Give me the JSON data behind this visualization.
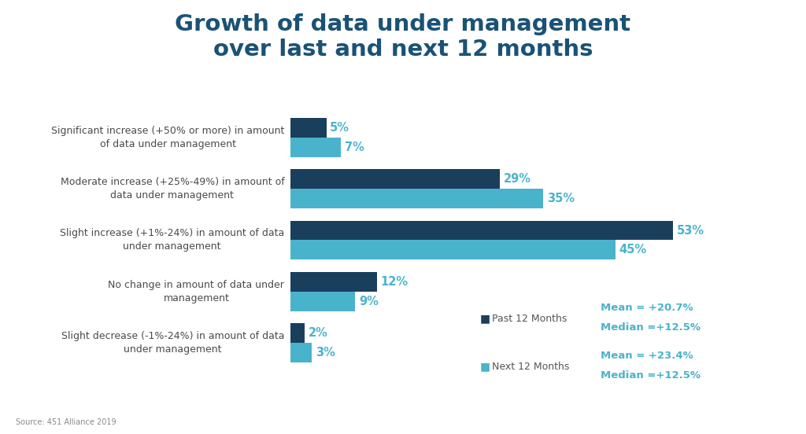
{
  "title": "Growth of data under management\nover last and next 12 months",
  "title_color": "#1a5276",
  "background_color": "#ffffff",
  "categories": [
    "Significant increase (+50% or more) in amount\nof data under management",
    "Moderate increase (+25%-49%) in amount of\ndata under management",
    "Slight increase (+1%-24%) in amount of data\nunder management",
    "No change in amount of data under\nmanagement",
    "Slight decrease (-1%-24%) in amount of data\nunder management"
  ],
  "past_values": [
    5,
    29,
    53,
    12,
    2
  ],
  "next_values": [
    7,
    35,
    45,
    9,
    3
  ],
  "past_color": "#1a3f5c",
  "next_color": "#4ab3cc",
  "label_color": "#4ab3cc",
  "xlim": [
    0,
    68
  ],
  "legend_past_label": "Past 12 Months",
  "legend_next_label": "Next 12 Months",
  "legend_label_color": "#555555",
  "past_mean": "Mean = +20.7%",
  "past_median": "Median =+12.5%",
  "next_mean": "Mean = +23.4%",
  "next_median": "Median =+12.5%",
  "stats_color": "#4ab3cc",
  "source": "Source: 451 Alliance 2019",
  "bar_height": 0.38
}
